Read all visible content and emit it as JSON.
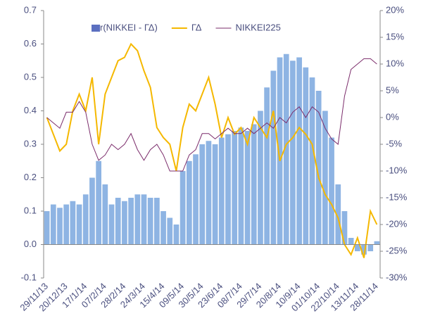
{
  "chart_data": {
    "type": "combo",
    "categories": [
      "29/11/13",
      null,
      null,
      "20/12/13",
      null,
      null,
      "17/1/14",
      null,
      null,
      "07/2/14",
      null,
      null,
      "28/2/14",
      null,
      null,
      "24/3/14",
      null,
      null,
      "15/4/14",
      null,
      null,
      "09/5/14",
      null,
      null,
      "30/5/14",
      null,
      null,
      "23/6/14",
      null,
      null,
      "08/7/14",
      null,
      null,
      "29/7/14",
      null,
      null,
      "20/8/14",
      null,
      null,
      "10/9/14",
      null,
      null,
      "01/10/14",
      null,
      null,
      "22/10/14",
      null,
      null,
      "13/11/14",
      null,
      null,
      "28/11/14"
    ],
    "series": [
      {
        "name": "r(NIKKEI - ΓΔ)",
        "type": "bar",
        "color": "#8eb4e3",
        "values": [
          0.1,
          0.12,
          0.11,
          0.12,
          0.13,
          0.12,
          0.15,
          0.2,
          0.25,
          0.18,
          0.12,
          0.14,
          0.13,
          0.14,
          0.15,
          0.15,
          0.14,
          0.14,
          0.1,
          0.08,
          0.06,
          0.22,
          0.25,
          0.27,
          0.3,
          0.31,
          0.3,
          0.32,
          0.33,
          0.34,
          0.35,
          0.34,
          0.36,
          0.4,
          0.47,
          0.52,
          0.56,
          0.57,
          0.55,
          0.56,
          0.53,
          0.5,
          0.46,
          0.4,
          0.32,
          0.18,
          0.1,
          0.02,
          -0.02,
          -0.03,
          -0.02,
          0.01
        ]
      },
      {
        "name": "ΓΔ",
        "type": "line",
        "color": "#f5b800",
        "values": [
          0.38,
          0.33,
          0.28,
          0.3,
          0.4,
          0.45,
          0.4,
          0.5,
          0.3,
          0.45,
          0.5,
          0.55,
          0.56,
          0.6,
          0.58,
          0.52,
          0.47,
          0.35,
          0.32,
          0.3,
          0.22,
          0.35,
          0.42,
          0.4,
          0.45,
          0.5,
          0.42,
          0.32,
          0.38,
          0.33,
          0.35,
          0.3,
          0.38,
          0.35,
          0.32,
          0.4,
          0.25,
          0.3,
          0.32,
          0.35,
          0.33,
          0.3,
          0.2,
          0.15,
          0.12,
          0.08,
          0.0,
          -0.03,
          0.02,
          -0.04,
          0.1,
          0.06
        ]
      },
      {
        "name": "NIKKEI225",
        "type": "line",
        "axis": "y2",
        "color": "#7b2c6b",
        "values": [
          0,
          -1,
          -2,
          1,
          1,
          3,
          1,
          -5,
          -8,
          -7,
          -5,
          -6,
          -5,
          -3,
          -6,
          -8,
          -6,
          -5,
          -7,
          -10,
          -10,
          -10,
          -7,
          -6,
          -3,
          -3,
          -4,
          -3,
          -2,
          -3,
          -3,
          -2,
          -3,
          -2,
          -1,
          -2,
          0,
          -1,
          1,
          2,
          0,
          2,
          1,
          -2,
          -4,
          -5,
          4,
          9,
          10,
          11,
          11,
          10
        ]
      }
    ],
    "ylim": [
      -0.1,
      0.7
    ],
    "yticks": [
      -0.1,
      {
        "value": 0,
        "label": "0.0"
      },
      0.1,
      0.2,
      0.3,
      0.4,
      0.5,
      0.6,
      0.7
    ],
    "y2lim": [
      -30,
      20
    ],
    "y2ticks": [
      {
        "value": -30,
        "label": "-30%"
      },
      {
        "value": -25,
        "label": "-25%"
      },
      {
        "value": -20,
        "label": "-20%"
      },
      {
        "value": -15,
        "label": "-15%"
      },
      {
        "value": -10,
        "label": "-10%"
      },
      {
        "value": -5,
        "label": "-5%"
      },
      {
        "value": 0,
        "label": "0%"
      },
      {
        "value": 5,
        "label": "5%"
      },
      {
        "value": 10,
        "label": "10%"
      },
      {
        "value": 15,
        "label": "15%"
      },
      {
        "value": 20,
        "label": "20%"
      }
    ],
    "legend": "top"
  }
}
